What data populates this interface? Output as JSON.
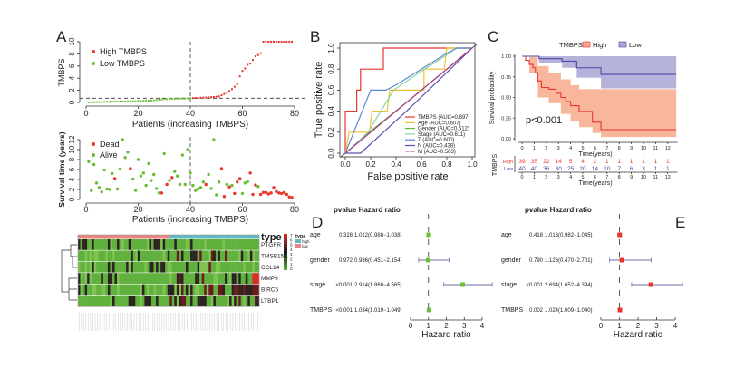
{
  "panels": {
    "a": "A",
    "b": "B",
    "c": "C",
    "d": "D",
    "e": "E"
  },
  "chart_data": [
    {
      "id": "risk_score",
      "type": "scatter",
      "xlabel": "Patients (increasing TMBPS)",
      "ylabel": "TMBPS",
      "xlim": [
        0,
        80
      ],
      "ylim": [
        0,
        10
      ],
      "xticks": [
        "0",
        "20",
        "40",
        "60",
        "80"
      ],
      "yticks": [
        "0",
        "2",
        "4",
        "6",
        "8",
        "10"
      ],
      "cutoff_patient": 40,
      "cutoff_value": 0.7,
      "legend": {
        "high": "High TMBPS",
        "low": "Low TMBPS",
        "placement": "top-left"
      },
      "colors": {
        "high": "#e8362d",
        "low": "#6cbd34"
      },
      "values": [
        0.02,
        0.04,
        0.05,
        0.06,
        0.07,
        0.08,
        0.09,
        0.1,
        0.11,
        0.12,
        0.13,
        0.14,
        0.15,
        0.16,
        0.17,
        0.18,
        0.19,
        0.2,
        0.21,
        0.22,
        0.24,
        0.26,
        0.28,
        0.3,
        0.33,
        0.36,
        0.4,
        0.45,
        0.5,
        0.53,
        0.56,
        0.58,
        0.6,
        0.62,
        0.63,
        0.64,
        0.65,
        0.66,
        0.68,
        0.7,
        0.72,
        0.74,
        0.76,
        0.78,
        0.8,
        0.82,
        0.84,
        0.86,
        0.9,
        0.95,
        1.0,
        1.2,
        1.4,
        1.6,
        1.9,
        2.2,
        2.6,
        3.0,
        4.3,
        5.2,
        5.6,
        6.2,
        6.4,
        7.0,
        7.6,
        7.8,
        8.1,
        10,
        10,
        10,
        10,
        10,
        10,
        10,
        10,
        10,
        10,
        10,
        10
      ]
    },
    {
      "id": "survival_status",
      "type": "scatter",
      "xlabel": "Patients (increasing TMBPS)",
      "ylabel": "Survival time (years)",
      "xlim": [
        0,
        80
      ],
      "ylim": [
        0,
        12
      ],
      "xticks": [
        "0",
        "20",
        "40",
        "60",
        "80"
      ],
      "yticks": [
        "0",
        "2",
        "4",
        "6",
        "8",
        "10",
        "12"
      ],
      "cutoff_patient": 40,
      "legend": {
        "dead": "Dead",
        "alive": "Alive",
        "placement": "top-left"
      },
      "colors": {
        "dead": "#e8362d",
        "alive": "#6cbd34"
      },
      "time": [
        7.6,
        1.8,
        7.0,
        3.3,
        2.4,
        1.5,
        5.9,
        2.1,
        2.0,
        5.2,
        4.2,
        2.1,
        6.1,
        12,
        8.4,
        9.5,
        6.2,
        4.1,
        1.8,
        8.0,
        4.7,
        5.3,
        2.8,
        7.2,
        3.8,
        5.0,
        2.2,
        1.3,
        1.3,
        9.2,
        3.0,
        3.8,
        4.4,
        5.6,
        4.7,
        3.0,
        8.9,
        3.0,
        10.0,
        5.3,
        2.8,
        1.8,
        2.1,
        2.4,
        3.5,
        3.0,
        5.0,
        2.2,
        12,
        0.9,
        3.5,
        6.2,
        0.6,
        3.0,
        2.5,
        2.8,
        1.2,
        3.5,
        4.2,
        1.2,
        3.3,
        3.6,
        5.3,
        1.0,
        2.9,
        2.6,
        1.0,
        1.4,
        1.4,
        1.1,
        1.3,
        2.4,
        1.6,
        1.3,
        1.2,
        1.4,
        1.0,
        0.5,
        0.4
      ],
      "dead": [
        0,
        0,
        0,
        0,
        0,
        0,
        0,
        0,
        0,
        0,
        1,
        0,
        0,
        0,
        0,
        0,
        1,
        0,
        0,
        0,
        0,
        0,
        0,
        0,
        0,
        0,
        0,
        0,
        1,
        0,
        1,
        0,
        1,
        0,
        0,
        0,
        0,
        0,
        0,
        0,
        0,
        0,
        0,
        0,
        0,
        1,
        0,
        0,
        0,
        0,
        0,
        1,
        1,
        0,
        1,
        0,
        1,
        1,
        1,
        0,
        0,
        0,
        1,
        1,
        1,
        0,
        1,
        1,
        1,
        1,
        1,
        1,
        1,
        1,
        1,
        1,
        1,
        1,
        1
      ]
    },
    {
      "id": "heatmap",
      "type": "heatmap",
      "genes": [
        "PTGFR",
        "TMSB15A",
        "CCL14",
        "MMP9",
        "BIRC5",
        "LTBP1"
      ],
      "annotation_title": "type",
      "annotation_legend_title": "type",
      "groups": [
        {
          "label": "high",
          "color": "#5fb8c0"
        },
        {
          "label": "low",
          "color": "#e8837f"
        }
      ],
      "colorscale": {
        "min": 0,
        "max": 7,
        "ticks": [
          "7",
          "6",
          "5",
          "4",
          "3",
          "2",
          "1",
          "0"
        ],
        "colors": [
          "#59b33a",
          "#1a1a1a",
          "#e02a2a"
        ]
      }
    },
    {
      "id": "roc",
      "type": "line",
      "xlabel": "False positive rate",
      "ylabel": "True positive rate",
      "xlim": [
        0,
        1
      ],
      "ylim": [
        0,
        1
      ],
      "xticks": [
        "0.0",
        "0.2",
        "0.4",
        "0.6",
        "0.8",
        "1.0"
      ],
      "yticks": [
        "0.0",
        "0.2",
        "0.4",
        "0.6",
        "0.8",
        "1.0"
      ],
      "legend_placement": "bottom-right",
      "series": [
        {
          "name": "TMBPS (AUC=0.897)",
          "color": "#e8362d",
          "points": [
            [
              0,
              0
            ],
            [
              0,
              0.4
            ],
            [
              0.09,
              0.4
            ],
            [
              0.09,
              0.6
            ],
            [
              0.12,
              0.6
            ],
            [
              0.12,
              0.8
            ],
            [
              0.3,
              0.8
            ],
            [
              0.3,
              1
            ],
            [
              1,
              1
            ]
          ]
        },
        {
          "name": "Age (AUC=0.607)",
          "color": "#f0be2c",
          "points": [
            [
              0,
              0
            ],
            [
              0.03,
              0.2
            ],
            [
              0.19,
              0.2
            ],
            [
              0.21,
              0.4
            ],
            [
              0.33,
              0.4
            ],
            [
              0.35,
              0.6
            ],
            [
              0.62,
              0.6
            ],
            [
              0.62,
              0.8
            ],
            [
              0.78,
              0.8
            ],
            [
              0.8,
              1
            ],
            [
              1,
              1
            ]
          ]
        },
        {
          "name": "Gender (AUC=0.512)",
          "color": "#5dbb3c",
          "points": [
            [
              0,
              0
            ],
            [
              0.2,
              0.21
            ],
            [
              0.5,
              0.5
            ],
            [
              0.8,
              0.8
            ],
            [
              1,
              1
            ]
          ]
        },
        {
          "name": "Stage (AUC=0.611)",
          "color": "#86d3a2",
          "points": [
            [
              0,
              0
            ],
            [
              0.18,
              0.2
            ],
            [
              0.38,
              0.6
            ],
            [
              0.6,
              0.78
            ],
            [
              0.82,
              0.95
            ],
            [
              0.87,
              1
            ],
            [
              1,
              1
            ]
          ]
        },
        {
          "name": "T (AUC=0.600)",
          "color": "#5b88d4",
          "points": [
            [
              0,
              0
            ],
            [
              0.2,
              0.6
            ],
            [
              0.32,
              0.6
            ],
            [
              0.4,
              0.65
            ],
            [
              0.8,
              0.95
            ],
            [
              0.88,
              1
            ],
            [
              1,
              1
            ]
          ]
        },
        {
          "name": "N (AUC=0.438)",
          "color": "#5b4fb0",
          "points": [
            [
              0,
              0
            ],
            [
              0.12,
              0
            ],
            [
              0.5,
              0.42
            ],
            [
              1,
              1
            ]
          ]
        },
        {
          "name": "M (AUC=0.503)",
          "color": "#b03a8a",
          "points": [
            [
              0,
              0
            ],
            [
              0.5,
              0.5
            ],
            [
              1,
              1
            ]
          ]
        }
      ]
    },
    {
      "id": "km",
      "type": "line",
      "legend_title": "TMBPS",
      "xlabel": "Time(years)",
      "ylabel": "Survival probability",
      "xlim": [
        0,
        12.7
      ],
      "ylim": [
        0,
        1
      ],
      "xticks": [
        "0",
        "1",
        "2",
        "3",
        "4",
        "5",
        "6",
        "7",
        "8",
        "9",
        "10",
        "11",
        "12"
      ],
      "yticks": [
        "0.00",
        "0.25",
        "0.50",
        "0.75",
        "1.00"
      ],
      "pvalue": "p<0.001",
      "series": [
        {
          "name": "High",
          "color": "#e8362d",
          "band": "#f7a98c",
          "steps": [
            [
              0,
              1
            ],
            [
              0.3,
              0.95
            ],
            [
              0.6,
              0.9
            ],
            [
              0.9,
              0.86
            ],
            [
              1.1,
              0.8
            ],
            [
              1.3,
              0.7
            ],
            [
              1.6,
              0.62
            ],
            [
              2.2,
              0.6
            ],
            [
              2.8,
              0.55
            ],
            [
              3.2,
              0.5
            ],
            [
              3.6,
              0.45
            ],
            [
              4.0,
              0.4
            ],
            [
              4.7,
              0.33
            ],
            [
              5.8,
              0.2
            ],
            [
              6.5,
              0.11
            ],
            [
              12.7,
              0.11
            ]
          ],
          "lower": [
            [
              0,
              1
            ],
            [
              0.6,
              0.8
            ],
            [
              1.3,
              0.5
            ],
            [
              2.2,
              0.43
            ],
            [
              3.2,
              0.3
            ],
            [
              4.0,
              0.22
            ],
            [
              4.7,
              0.14
            ],
            [
              5.8,
              0.07
            ],
            [
              6.5,
              0.02
            ],
            [
              12.7,
              0.02
            ]
          ],
          "upper": [
            [
              0,
              1
            ],
            [
              0.6,
              0.99
            ],
            [
              1.3,
              0.88
            ],
            [
              2.2,
              0.8
            ],
            [
              3.2,
              0.72
            ],
            [
              4.0,
              0.65
            ],
            [
              4.7,
              0.6
            ],
            [
              6.5,
              0.6
            ],
            [
              12.7,
              0.6
            ]
          ]
        },
        {
          "name": "Low",
          "color": "#4949a3",
          "band": "#a9a6d4",
          "steps": [
            [
              0,
              1
            ],
            [
              1.4,
              0.97
            ],
            [
              3.3,
              0.94
            ],
            [
              4.5,
              0.86
            ],
            [
              6.5,
              0.78
            ],
            [
              12.7,
              0.78
            ]
          ],
          "lower": [
            [
              0,
              1
            ],
            [
              1.4,
              0.92
            ],
            [
              3.3,
              0.86
            ],
            [
              4.5,
              0.74
            ],
            [
              6.5,
              0.61
            ],
            [
              12.7,
              0.61
            ]
          ],
          "upper": [
            [
              0,
              1
            ],
            [
              12.7,
              1
            ]
          ]
        }
      ],
      "risk_table": {
        "title": "TMBPS",
        "rows": [
          {
            "label": "High",
            "counts": [
              "39",
              "35",
              "22",
              "14",
              "5",
              "4",
              "2",
              "1",
              "1",
              "1",
              "1",
              "1",
              "1"
            ]
          },
          {
            "label": "Low",
            "counts": [
              "40",
              "40",
              "36",
              "30",
              "25",
              "20",
              "14",
              "10",
              "7",
              "6",
              "3",
              "1",
              "1"
            ]
          }
        ],
        "xlabel": "Time(years)"
      }
    },
    {
      "id": "uni_cox",
      "type": "forest",
      "header": "pvalue Hazard ratio",
      "xlabel": "Hazard ratio",
      "xlim": [
        0,
        4
      ],
      "xticks": [
        "0",
        "1",
        "2",
        "3",
        "4"
      ],
      "color": "#6cbd34",
      "rows": [
        {
          "label": "age",
          "pvalue": "0.328",
          "hr_text": "1.012(0.988−1.038)",
          "hr": 1.012,
          "low": 0.988,
          "high": 1.038
        },
        {
          "label": "gender",
          "pvalue": "0.972",
          "hr_text": "0.986(0.451−2.154)",
          "hr": 0.986,
          "low": 0.451,
          "high": 2.154
        },
        {
          "label": "stage",
          "pvalue": "<0.001",
          "hr_text": "2.914(1.860−4.565)",
          "hr": 2.914,
          "low": 1.86,
          "high": 4.565
        },
        {
          "label": "TMBPS",
          "pvalue": "<0.001",
          "hr_text": "1.034(1.019−1.049)",
          "hr": 1.034,
          "low": 1.019,
          "high": 1.049
        }
      ]
    },
    {
      "id": "multi_cox",
      "type": "forest",
      "header": "pvalue Hazard ratio",
      "xlabel": "Hazard ratio",
      "xlim": [
        0,
        4
      ],
      "xticks": [
        "0",
        "1",
        "2",
        "3",
        "4"
      ],
      "color": "#e8362d",
      "rows": [
        {
          "label": "age",
          "pvalue": "0.418",
          "hr_text": "1.013(0.982−1.045)",
          "hr": 1.013,
          "low": 0.982,
          "high": 1.045
        },
        {
          "label": "gender",
          "pvalue": "0.790",
          "hr_text": "1.126(0.470−2.701)",
          "hr": 1.126,
          "low": 0.47,
          "high": 2.701
        },
        {
          "label": "stage",
          "pvalue": "<0.001",
          "hr_text": "2.694(1.652−4.394)",
          "hr": 2.694,
          "low": 1.652,
          "high": 4.394
        },
        {
          "label": "TMBPS",
          "pvalue": "0.002",
          "hr_text": "1.024(1.009−1.040)",
          "hr": 1.024,
          "low": 1.009,
          "high": 1.04
        }
      ]
    }
  ]
}
